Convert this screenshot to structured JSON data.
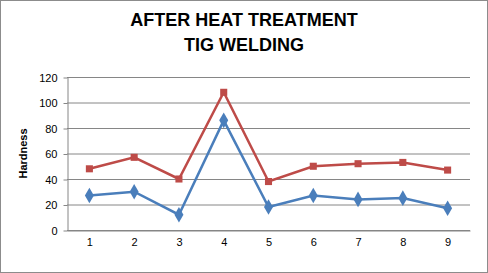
{
  "chart_data": {
    "type": "line",
    "title": [
      "AFTER HEAT TREATMENT",
      "TIG WELDING"
    ],
    "y_label": "Hardness",
    "categories": [
      "1",
      "2",
      "3",
      "4",
      "5",
      "6",
      "7",
      "8",
      "9"
    ],
    "series": [
      {
        "color": "#4a7ebb",
        "marker": "diamond",
        "values": [
          27,
          30,
          12,
          86,
          18,
          27,
          24,
          25,
          17
        ]
      },
      {
        "color": "#be4b48",
        "marker": "square",
        "values": [
          48,
          57,
          40,
          108,
          38,
          50,
          52,
          53,
          47
        ]
      }
    ],
    "ylim": [
      0,
      120
    ],
    "yticks": [
      0,
      20,
      40,
      60,
      80,
      100,
      120
    ],
    "grid": true
  }
}
